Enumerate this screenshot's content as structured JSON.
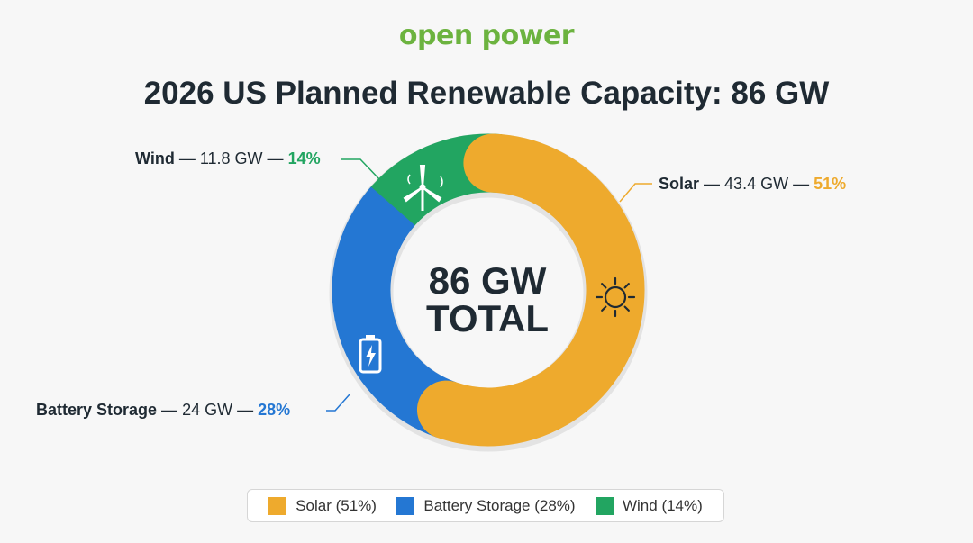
{
  "logo": "open power",
  "title": "2026 US Planned Renewable Capacity: 86 GW",
  "center": {
    "line1": "86 GW",
    "line2": "TOTAL"
  },
  "chart_data": {
    "type": "pie",
    "subtype": "donut",
    "title": "2026 US Planned Renewable Capacity: 86 GW",
    "total_label": "86 GW TOTAL",
    "unit": "GW",
    "series": [
      {
        "name": "Solar",
        "value": 43.4,
        "percent": 51,
        "color": "#eeaa2d",
        "icon": "sun-icon",
        "label_sep1": " — ",
        "value_text": "43.4 GW",
        "label_sep2": " — ",
        "percent_text": "51%",
        "legend": "Solar (51%)"
      },
      {
        "name": "Battery Storage",
        "value": 24,
        "percent": 28,
        "color": "#2477d3",
        "icon": "battery-icon",
        "label_sep1": " — ",
        "value_text": "24 GW",
        "label_sep2": " — ",
        "percent_text": "28%",
        "legend": "Battery Storage (28%)"
      },
      {
        "name": "Wind",
        "value": 11.8,
        "percent": 14,
        "color": "#22a561",
        "icon": "wind-turbine-icon",
        "label_sep1": " — ",
        "value_text": "11.8 GW",
        "label_sep2": " — ",
        "percent_text": "14%",
        "legend": "Wind (14%)"
      }
    ],
    "legend_position": "bottom"
  }
}
